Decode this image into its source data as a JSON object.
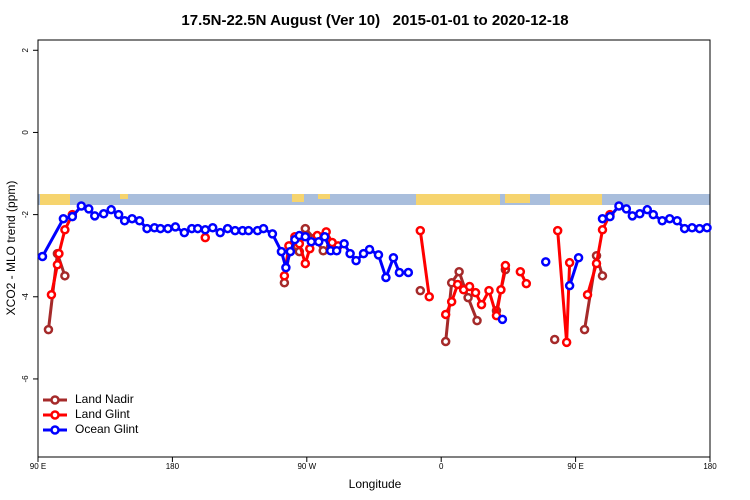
{
  "chart_data": {
    "type": "line",
    "title": "17.5N-22.5N August (Ver 10)   2015-01-01 to 2020-12-18",
    "xlabel": "Longitude",
    "ylabel": "XCO2 - MLO trend (ppm)",
    "xlim": [
      90,
      540
    ],
    "ylim": [
      -7.9,
      2.25
    ],
    "xticks": [
      {
        "value": 90,
        "label": "90 E"
      },
      180,
      {
        "value": 270,
        "label": "90 W"
      },
      {
        "value": 360,
        "label": "0"
      },
      {
        "value": 450,
        "label": "90 E"
      },
      {
        "value": 540,
        "label": "180"
      }
    ],
    "yticks": [
      2,
      0,
      -2,
      -4,
      -6
    ],
    "legend": "bottom-left",
    "series": [
      {
        "name": "Land Nadir",
        "color": "#a52a2a",
        "x": [
          97,
          103,
          108,
          null,
          255,
          259,
          265,
          269,
          275,
          281,
          286,
          null,
          346,
          null,
          363,
          367,
          372,
          378,
          384,
          null,
          397,
          403,
          null,
          436,
          null,
          456,
          464,
          468
        ],
        "values": [
          -4.8,
          -2.95,
          -3.49,
          null,
          -3.66,
          -2.76,
          -2.9,
          -2.34,
          -2.58,
          -2.88,
          -2.78,
          null,
          -3.85,
          null,
          -5.09,
          -3.66,
          -3.39,
          -4.02,
          -4.58,
          null,
          -4.34,
          -3.34,
          null,
          -5.04,
          null,
          -4.8,
          -3.0,
          -3.49
        ]
      },
      {
        "name": "Land Glint",
        "color": "#ff0000",
        "x": [
          99,
          103,
          104,
          108,
          113,
          null,
          202,
          null,
          255,
          258,
          262,
          265,
          269,
          272,
          277,
          283,
          287,
          291,
          null,
          346,
          352,
          null,
          363,
          367,
          371,
          375,
          379,
          383,
          387,
          392,
          397,
          400,
          403,
          null,
          413,
          417,
          null,
          438,
          444,
          446,
          null,
          458,
          464,
          468,
          473
        ],
        "values": [
          -3.95,
          -3.22,
          -2.95,
          -2.37,
          -2.0,
          null,
          -2.56,
          null,
          -3.49,
          -2.76,
          -2.54,
          -2.71,
          -3.19,
          -2.83,
          -2.51,
          -2.42,
          -2.68,
          -2.76,
          null,
          -2.39,
          -4.0,
          null,
          -4.43,
          -4.12,
          -3.7,
          -3.83,
          -3.75,
          -3.9,
          -4.19,
          -3.85,
          -4.46,
          -3.83,
          -3.24,
          null,
          -3.39,
          -3.68,
          null,
          -2.39,
          -5.11,
          -3.17,
          null,
          -3.95,
          -3.19,
          -2.37,
          -2.0
        ]
      },
      {
        "name": "Ocean Glint",
        "color": "#0000ff",
        "x": [
          93,
          107,
          113,
          119,
          124,
          128,
          134,
          139,
          144,
          148,
          153,
          158,
          163,
          168,
          172,
          177,
          182,
          188,
          193,
          197,
          202,
          207,
          212,
          217,
          222,
          227,
          231,
          237,
          241,
          247,
          253,
          256,
          259,
          262,
          265,
          269,
          273,
          278,
          282,
          286,
          290,
          295,
          299,
          303,
          308,
          312,
          318,
          323,
          328,
          332,
          338,
          null,
          401,
          null,
          430,
          null,
          446,
          452,
          null,
          468,
          473,
          479,
          484,
          488,
          493,
          498,
          502,
          508,
          513,
          518,
          523,
          528,
          533,
          538
        ],
        "values": [
          -3.02,
          -2.1,
          -2.05,
          -1.79,
          -1.86,
          -2.03,
          -1.98,
          -1.88,
          -2.0,
          -2.15,
          -2.1,
          -2.15,
          -2.34,
          -2.32,
          -2.34,
          -2.34,
          -2.3,
          -2.44,
          -2.34,
          -2.34,
          -2.37,
          -2.32,
          -2.44,
          -2.34,
          -2.39,
          -2.39,
          -2.39,
          -2.39,
          -2.34,
          -2.47,
          -2.9,
          -3.29,
          -2.9,
          -2.61,
          -2.51,
          -2.54,
          -2.66,
          -2.66,
          -2.54,
          -2.88,
          -2.88,
          -2.71,
          -2.95,
          -3.12,
          -2.95,
          -2.85,
          -2.98,
          -3.53,
          -3.05,
          -3.41,
          -3.41,
          null,
          -4.55,
          null,
          -3.15,
          null,
          -3.73,
          -3.05,
          null,
          -2.1,
          -2.05,
          -1.79,
          -1.86,
          -2.03,
          -1.98,
          -1.88,
          -2.0,
          -2.15,
          -2.1,
          -2.15,
          -2.34,
          -2.32,
          -2.34,
          -2.32
        ]
      }
    ]
  }
}
